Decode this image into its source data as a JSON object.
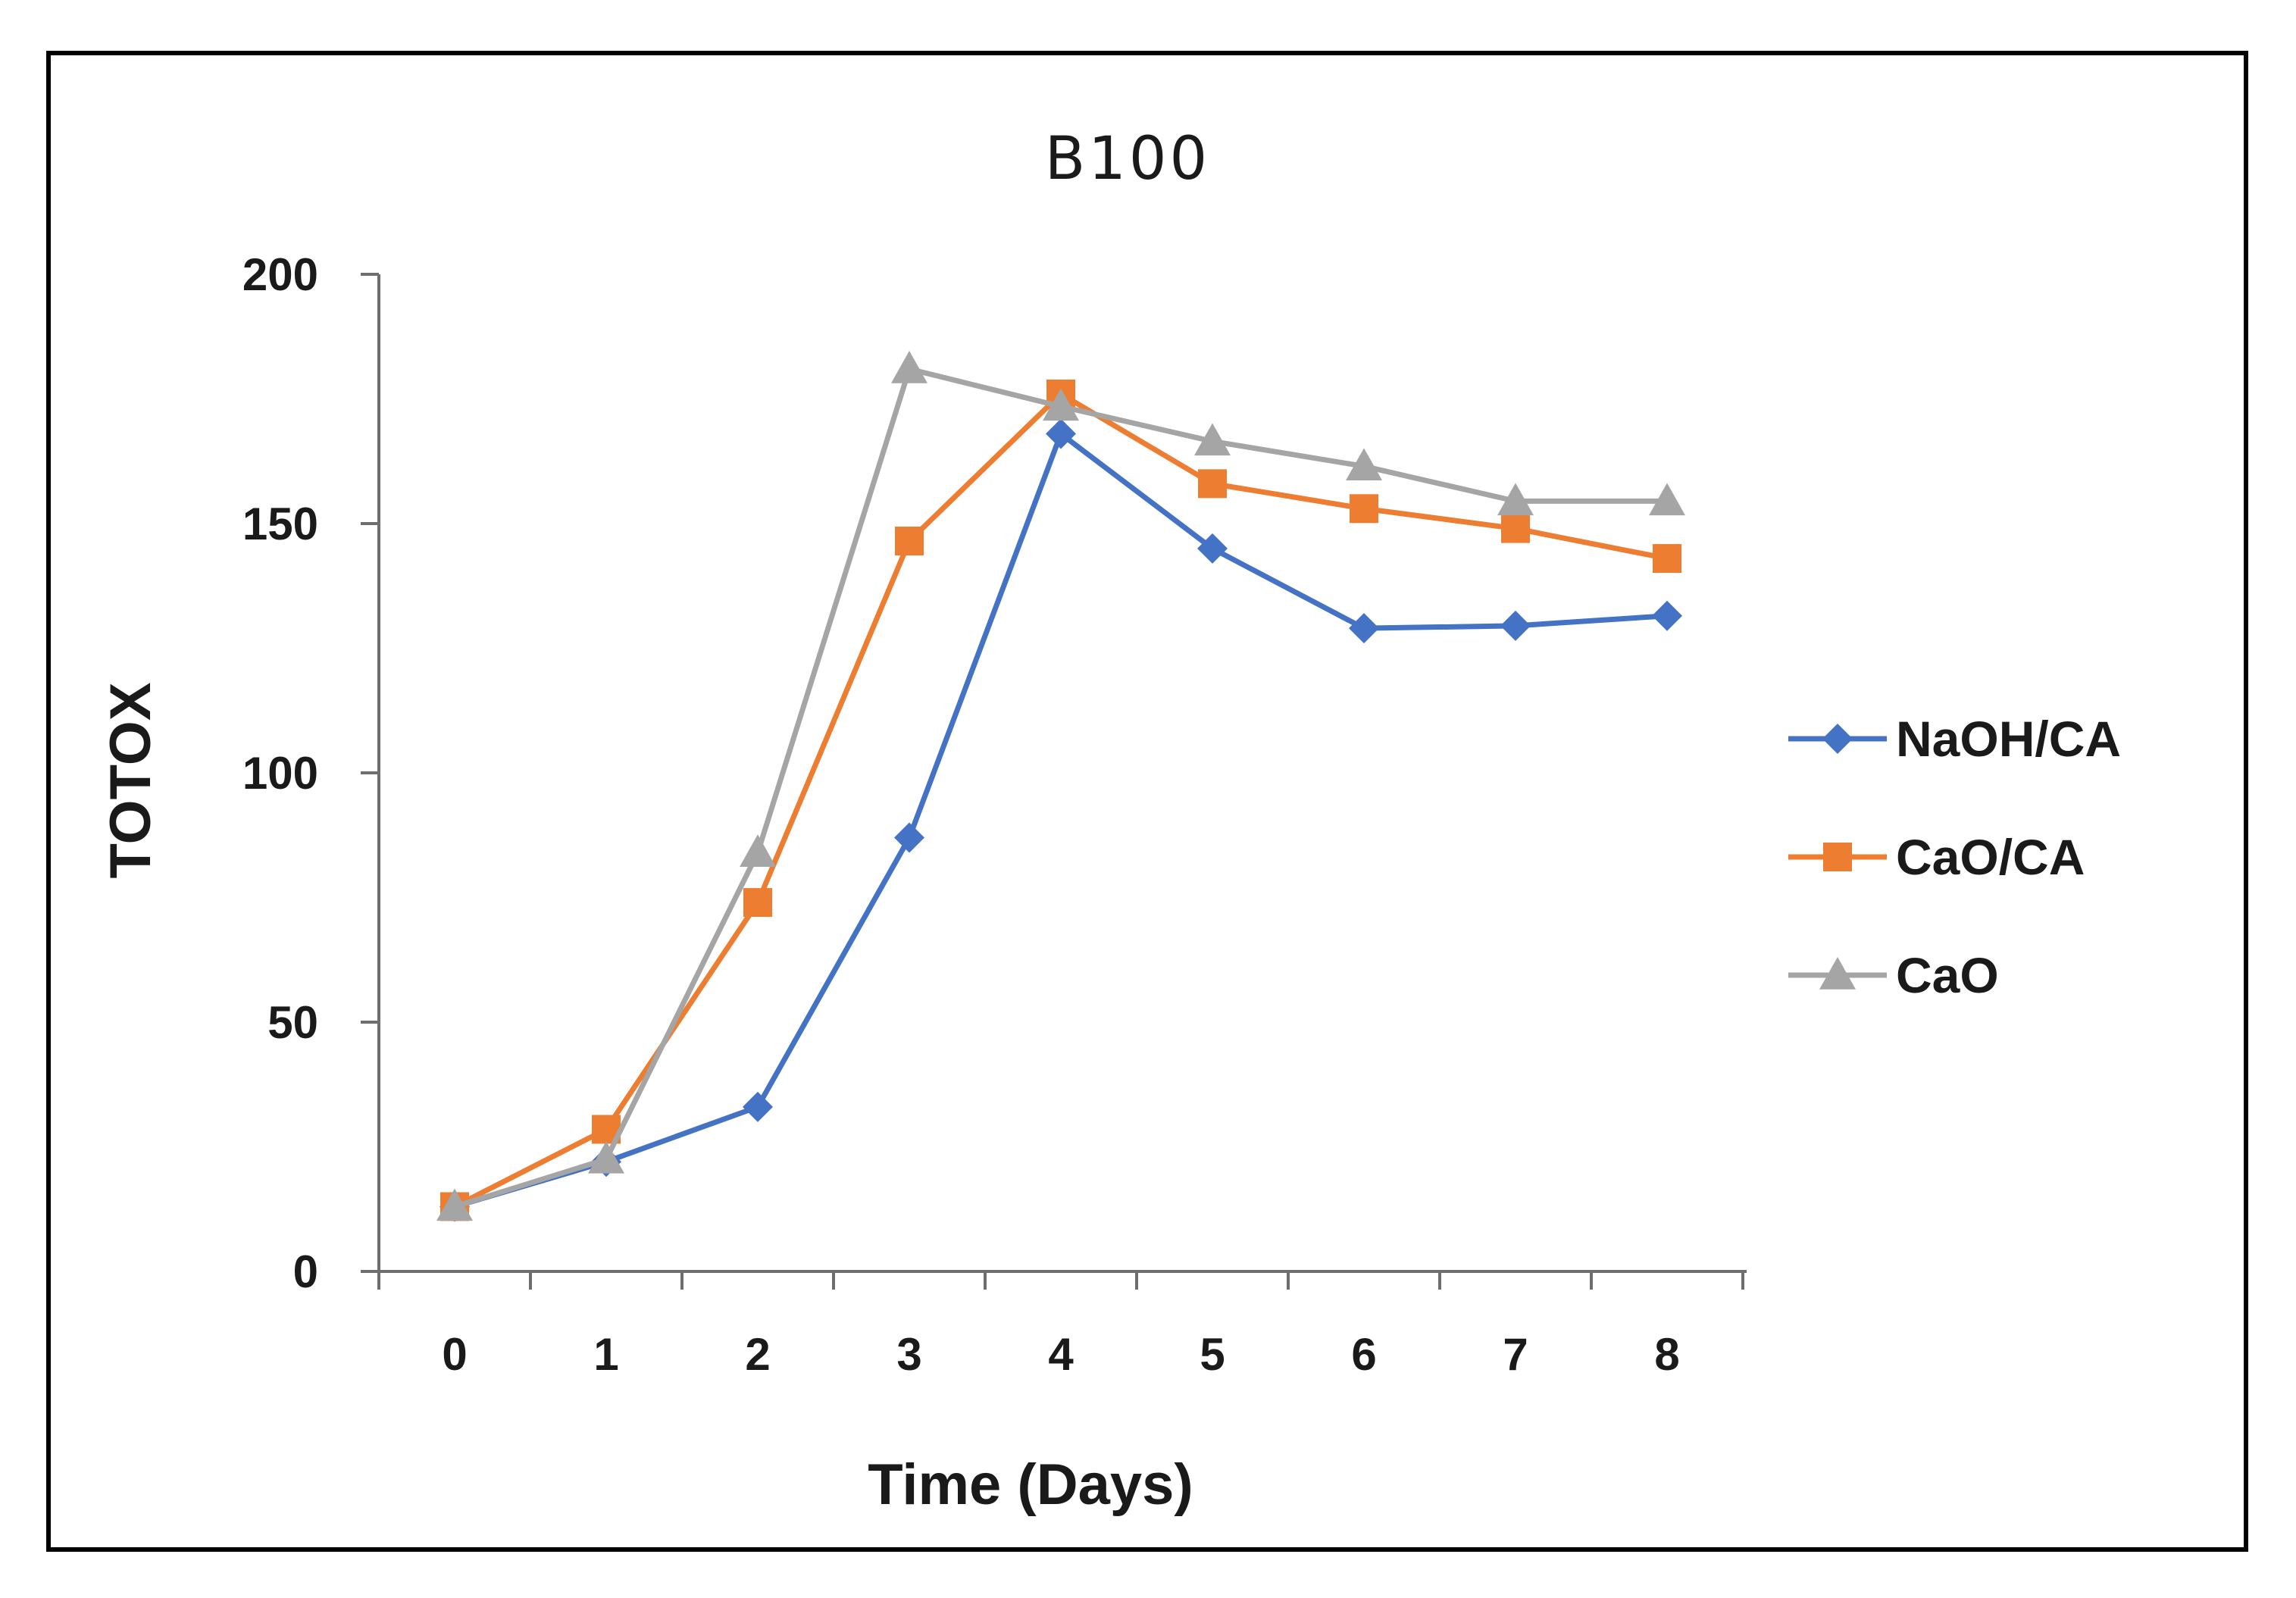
{
  "chart_data": {
    "type": "line",
    "title": "B100",
    "xlabel": "Time (Days)",
    "ylabel": "TOTOX",
    "x": [
      0,
      1,
      2,
      3,
      4,
      5,
      6,
      7,
      8
    ],
    "x_tick_labels": [
      "0",
      "1",
      "2",
      "3",
      "4",
      "5",
      "6",
      "7",
      "8"
    ],
    "y_tick_labels": [
      "0",
      "50",
      "100",
      "150",
      "200"
    ],
    "y_ticks": [
      0,
      50,
      100,
      150,
      200
    ],
    "ylim": [
      0,
      200
    ],
    "grid": false,
    "legend_position": "right",
    "series": [
      {
        "name": "NaOH/CA",
        "marker": "diamond",
        "color": "#4472C4",
        "values": [
          13,
          22,
          33,
          87,
          168,
          145,
          129,
          129.5,
          131.5
        ]
      },
      {
        "name": "CaO/CA",
        "marker": "square",
        "color": "#ED7D31",
        "values": [
          13,
          28.5,
          74,
          146.5,
          176,
          158,
          153,
          149,
          143
        ]
      },
      {
        "name": "CaO",
        "marker": "triangle",
        "color": "#A5A5A5",
        "values": [
          13,
          22.5,
          84,
          181,
          173.5,
          166.5,
          161.5,
          154.5,
          154.5
        ]
      }
    ]
  }
}
